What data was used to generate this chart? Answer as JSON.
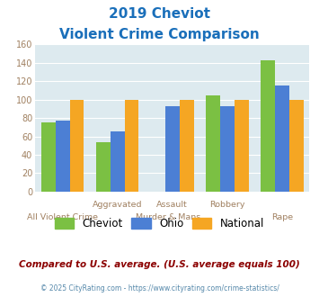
{
  "title_line1": "2019 Cheviot",
  "title_line2": "Violent Crime Comparison",
  "cheviot": [
    75,
    54,
    0,
    105,
    143
  ],
  "ohio": [
    77,
    65,
    93,
    93,
    115
  ],
  "national": [
    100,
    100,
    100,
    100,
    100
  ],
  "bar_color_cheviot": "#7bc043",
  "bar_color_ohio": "#4c7fd4",
  "bar_color_national": "#f5a623",
  "ylim": [
    0,
    160
  ],
  "yticks": [
    0,
    20,
    40,
    60,
    80,
    100,
    120,
    140,
    160
  ],
  "bg_color": "#ddeaef",
  "title_color": "#1a6fba",
  "xtick_row1": [
    "",
    "Aggravated",
    "Assault",
    "Robbery",
    ""
  ],
  "xtick_row2": [
    "All Violent Crime",
    "",
    "Murder & Mans...",
    "",
    "Rape"
  ],
  "footer_text": "Compared to U.S. average. (U.S. average equals 100)",
  "copyright_text": "© 2025 CityRating.com - https://www.cityrating.com/crime-statistics/",
  "legend_labels": [
    "Cheviot",
    "Ohio",
    "National"
  ],
  "tick_color": "#a08060",
  "footer_color": "#8b0000",
  "copyright_color": "#5588aa"
}
